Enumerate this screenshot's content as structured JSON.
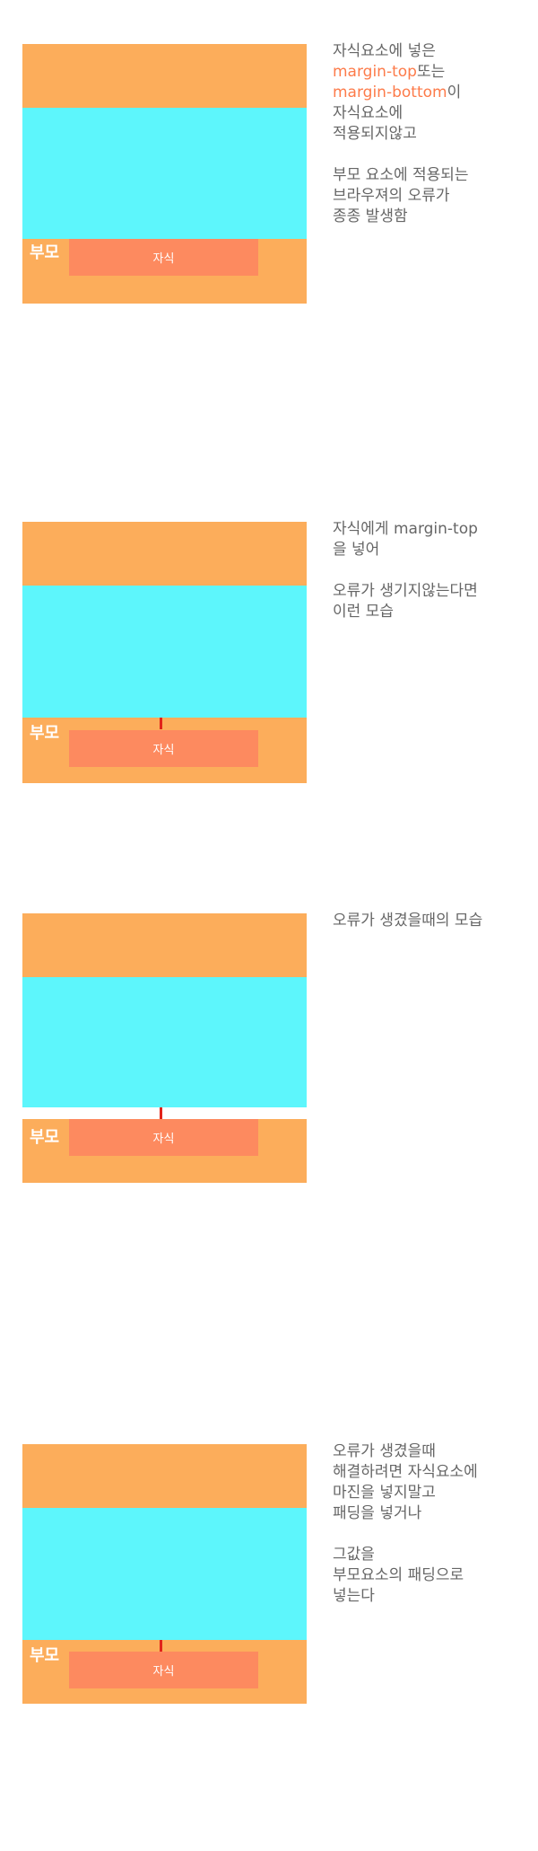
{
  "colors": {
    "parent": "#fcad5b",
    "sibling": "#5df6fc",
    "child": "#fd8a5f",
    "marker": "#e2231a",
    "highlight": "#fd7b4a",
    "text": "#666666"
  },
  "labels": {
    "parent": "부모",
    "child": "자식"
  },
  "sections": [
    {
      "lines": [
        "자식요소에 넣은",
        "margin-top",
        "또는",
        "margin-bottom",
        "이",
        "자식요소에",
        "적용되지않고",
        "부모 요소에 적용되는",
        "브라우져의 오류가",
        "종종 발생함"
      ]
    },
    {
      "lines": [
        "자식에게 margin-top",
        "을 넣어",
        "오류가 생기지않는다면",
        "이런 모습"
      ]
    },
    {
      "lines": [
        "오류가 생겼을때의 모습"
      ]
    },
    {
      "lines": [
        "오류가 생겼을때",
        "해결하려면 자식요소에",
        "마진을 넣지말고",
        "패딩을 넣거나",
        "그값을",
        "부모요소의 패딩으로",
        "넣는다"
      ]
    }
  ]
}
